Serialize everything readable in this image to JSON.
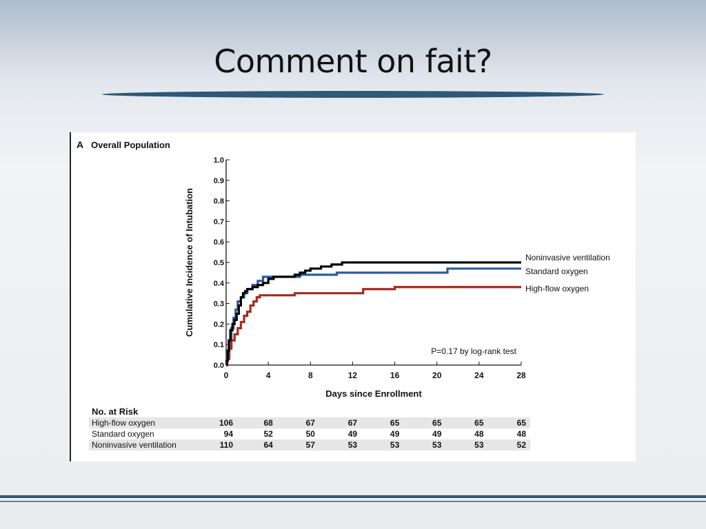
{
  "slide": {
    "title": "Comment on fait?"
  },
  "colors": {
    "noninvasive": "#000000",
    "standard": "#2c5aa0",
    "highflow": "#a52a1e",
    "underline": "#2e5878"
  },
  "chart_data": {
    "type": "line",
    "step": true,
    "panel_letter": "A",
    "title": "Overall Population",
    "xlabel": "Days since Enrollment",
    "ylabel": "Cumulative Incidence of Intubation",
    "xlim": [
      0,
      28
    ],
    "ylim": [
      0,
      1.0
    ],
    "x_ticks": [
      0,
      4,
      8,
      12,
      16,
      20,
      24,
      28
    ],
    "y_ticks": [
      "0.0",
      "0.1",
      "0.2",
      "0.3",
      "0.4",
      "0.5",
      "0.6",
      "0.7",
      "0.8",
      "0.9",
      "1.0"
    ],
    "annotation": "P=0.17 by log-rank test",
    "series": [
      {
        "name": "Noninvasive ventilation",
        "color": "#000000",
        "x": [
          0,
          0.05,
          0.15,
          0.25,
          0.4,
          0.6,
          0.8,
          1.0,
          1.2,
          1.4,
          1.6,
          1.8,
          2.0,
          2.5,
          3.0,
          3.5,
          4.0,
          4.5,
          6.5,
          7.0,
          7.5,
          8.0,
          9.0,
          10.0,
          11.0,
          28.0
        ],
        "y": [
          0,
          0.02,
          0.07,
          0.12,
          0.17,
          0.2,
          0.22,
          0.25,
          0.29,
          0.33,
          0.35,
          0.36,
          0.37,
          0.38,
          0.39,
          0.4,
          0.42,
          0.43,
          0.44,
          0.45,
          0.46,
          0.47,
          0.48,
          0.49,
          0.5,
          0.5
        ]
      },
      {
        "name": "Standard oxygen",
        "color": "#2c5aa0",
        "x": [
          0,
          0.1,
          0.3,
          0.5,
          0.7,
          0.9,
          1.1,
          1.4,
          1.7,
          2.0,
          2.5,
          3.0,
          3.5,
          4.0,
          7.0,
          10.5,
          21.0,
          28.0
        ],
        "y": [
          0,
          0.05,
          0.12,
          0.18,
          0.23,
          0.27,
          0.31,
          0.33,
          0.35,
          0.37,
          0.39,
          0.41,
          0.43,
          0.43,
          0.44,
          0.45,
          0.47,
          0.47
        ]
      },
      {
        "name": "High-flow oxygen",
        "color": "#a52a1e",
        "x": [
          0,
          0.1,
          0.3,
          0.5,
          0.8,
          1.1,
          1.4,
          1.7,
          2.0,
          2.3,
          2.6,
          2.9,
          3.2,
          6.5,
          8.0,
          10.0,
          13.0,
          16.0,
          28.0
        ],
        "y": [
          0,
          0.03,
          0.08,
          0.12,
          0.15,
          0.18,
          0.21,
          0.24,
          0.26,
          0.29,
          0.31,
          0.33,
          0.34,
          0.35,
          0.35,
          0.35,
          0.37,
          0.38,
          0.38
        ]
      }
    ],
    "risk_table": {
      "title": "No. at Risk",
      "days": [
        0,
        4,
        8,
        12,
        16,
        20,
        24,
        28
      ],
      "rows": [
        {
          "label": "High-flow oxygen",
          "values": [
            106,
            68,
            67,
            67,
            65,
            65,
            65,
            65
          ]
        },
        {
          "label": "Standard oxygen",
          "values": [
            94,
            52,
            50,
            49,
            49,
            49,
            48,
            48
          ]
        },
        {
          "label": "Noninvasive ventilation",
          "values": [
            110,
            64,
            57,
            53,
            53,
            53,
            53,
            52
          ]
        }
      ]
    }
  }
}
